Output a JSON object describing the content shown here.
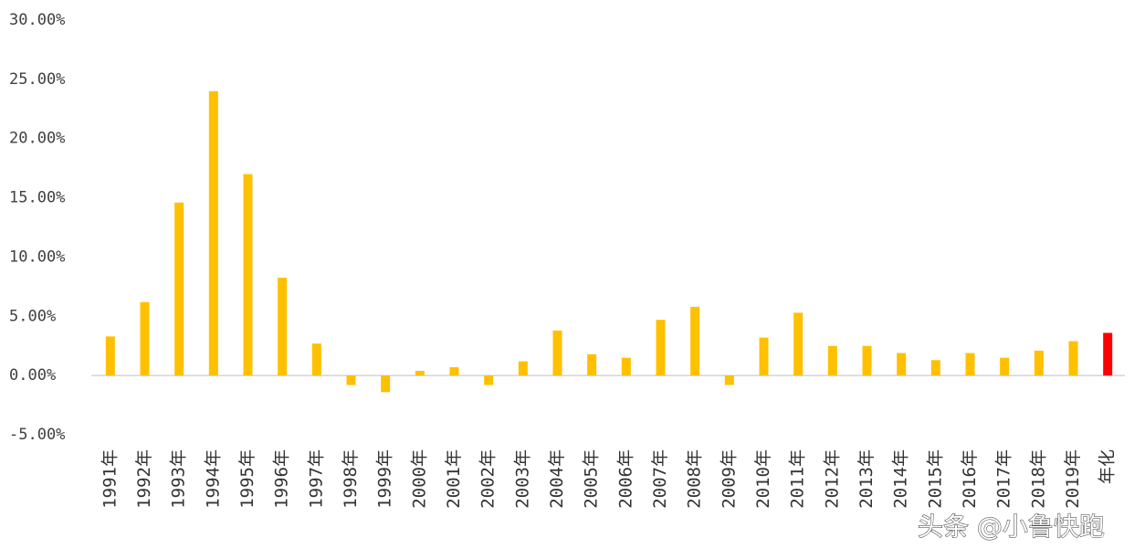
{
  "chart_data": {
    "type": "bar",
    "categories": [
      "1991年",
      "1992年",
      "1993年",
      "1994年",
      "1995年",
      "1996年",
      "1997年",
      "1998年",
      "1999年",
      "2000年",
      "2001年",
      "2002年",
      "2003年",
      "2004年",
      "2005年",
      "2006年",
      "2007年",
      "2008年",
      "2009年",
      "2010年",
      "2011年",
      "2012年",
      "2013年",
      "2014年",
      "2015年",
      "2016年",
      "2017年",
      "2018年",
      "2019年",
      "年化"
    ],
    "values": [
      3.3,
      6.2,
      14.6,
      24.0,
      17.0,
      8.25,
      2.7,
      -0.8,
      -1.4,
      0.4,
      0.7,
      -0.8,
      1.2,
      3.8,
      1.8,
      1.5,
      4.7,
      5.8,
      -0.8,
      3.2,
      5.3,
      2.5,
      2.5,
      1.9,
      1.3,
      1.9,
      1.5,
      2.1,
      2.9,
      3.6
    ],
    "colors": [
      "#ffc000",
      "#ffc000",
      "#ffc000",
      "#ffc000",
      "#ffc000",
      "#ffc000",
      "#ffc000",
      "#ffc000",
      "#ffc000",
      "#ffc000",
      "#ffc000",
      "#ffc000",
      "#ffc000",
      "#ffc000",
      "#ffc000",
      "#ffc000",
      "#ffc000",
      "#ffc000",
      "#ffc000",
      "#ffc000",
      "#ffc000",
      "#ffc000",
      "#ffc000",
      "#ffc000",
      "#ffc000",
      "#ffc000",
      "#ffc000",
      "#ffc000",
      "#ffc000",
      "#ff0000"
    ],
    "ylim": [
      -5,
      30
    ],
    "yticks": [
      {
        "value": -5,
        "label": "-5.00%"
      },
      {
        "value": 0,
        "label": "0.00%"
      },
      {
        "value": 5,
        "label": "5.00%"
      },
      {
        "value": 10,
        "label": "10.00%"
      },
      {
        "value": 15,
        "label": "15.00%"
      },
      {
        "value": 20,
        "label": "20.00%"
      },
      {
        "value": 25,
        "label": "25.00%"
      },
      {
        "value": 30,
        "label": "30.00%"
      }
    ],
    "grid": false,
    "watermark": "头条 @小鲁快跑"
  }
}
